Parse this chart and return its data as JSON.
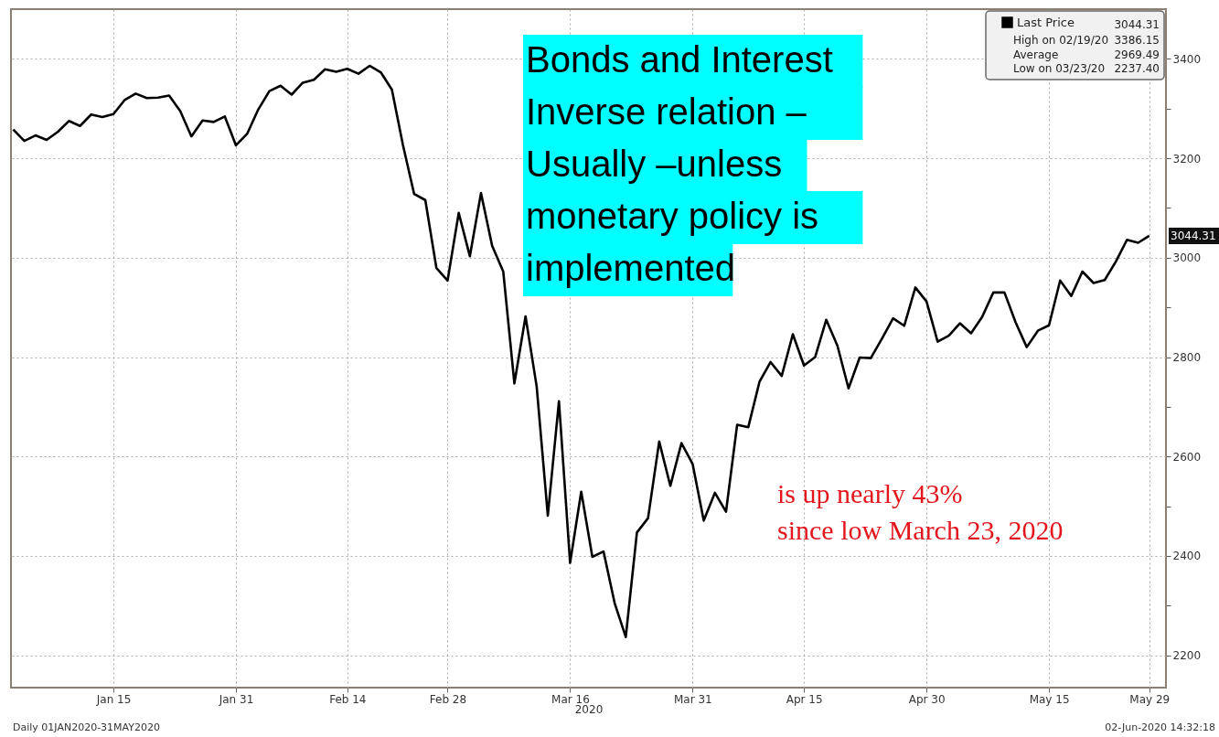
{
  "chart_data": {
    "type": "line",
    "xlabel": "2020",
    "categories": [
      null,
      null,
      null,
      null,
      null,
      null,
      null,
      null,
      null,
      "Jan 15",
      null,
      null,
      null,
      null,
      null,
      null,
      null,
      null,
      null,
      null,
      "Jan 31",
      null,
      null,
      null,
      null,
      null,
      null,
      null,
      null,
      null,
      "Feb 14",
      null,
      null,
      null,
      null,
      null,
      null,
      null,
      null,
      "Feb 28",
      null,
      null,
      null,
      null,
      null,
      null,
      null,
      null,
      null,
      null,
      "Mar 16",
      null,
      null,
      null,
      null,
      null,
      null,
      null,
      null,
      null,
      null,
      "Mar 31",
      null,
      null,
      null,
      null,
      null,
      null,
      null,
      null,
      null,
      "Apr 15",
      null,
      null,
      null,
      null,
      null,
      null,
      null,
      null,
      null,
      null,
      "Apr 30",
      null,
      null,
      null,
      null,
      null,
      null,
      null,
      null,
      null,
      null,
      "May 15",
      null,
      null,
      null,
      null,
      null,
      null,
      null,
      null,
      "May 29"
    ],
    "series": [
      {
        "name": "Last Price",
        "color": "#000000",
        "values": [
          3258,
          3235,
          3246,
          3237,
          3253,
          3275,
          3265,
          3288,
          3283,
          3289,
          3317,
          3330,
          3321,
          3322,
          3326,
          3295,
          3244,
          3276,
          3273,
          3284,
          3226,
          3249,
          3298,
          3335,
          3346,
          3328,
          3352,
          3358,
          3379,
          3374,
          3380,
          3370,
          3386,
          3373,
          3338,
          3226,
          3128,
          3116,
          2979,
          2954,
          3090,
          3003,
          3130,
          3024,
          2972,
          2747,
          2882,
          2741,
          2481,
          2711,
          2386,
          2529,
          2398,
          2409,
          2305,
          2237,
          2447,
          2476,
          2630,
          2541,
          2627,
          2585,
          2471,
          2527,
          2489,
          2664,
          2659,
          2750,
          2790,
          2762,
          2846,
          2783,
          2800,
          2875,
          2823,
          2737,
          2799,
          2798,
          2837,
          2878,
          2863,
          2940,
          2912,
          2831,
          2843,
          2868,
          2848,
          2881,
          2930,
          2930,
          2870,
          2820,
          2853,
          2864,
          2954,
          2923,
          2972,
          2949,
          2955,
          2992,
          3036,
          3030,
          3044
        ]
      }
    ],
    "ylim": [
      2135,
      3500
    ],
    "yticks": [
      2200,
      {
        "value": 2300,
        "label": null
      },
      2400,
      {
        "value": 2500,
        "label": null
      },
      2600,
      {
        "value": 2700,
        "label": null
      },
      2800,
      {
        "value": 2900,
        "label": null
      },
      3000,
      {
        "value": 3100,
        "label": null
      },
      3200,
      {
        "value": 3300,
        "label": null
      },
      3400
    ],
    "grid": true,
    "legend": "top right",
    "line_style": "solid",
    "marker": "none",
    "annotations": [
      "Bonds and Interest\nInverse relation –\nUsually –unless\nmonetary policy is\nimplemented",
      "is up nearly 43%\nsince low March 23, 2020",
      "3044.31",
      "High on 02/19/20 3386.15",
      "Average 2969.49",
      "Low on 03/23/20 2237.40",
      "3044.31",
      "Daily 01JAN2020-31MAY2020",
      "02-Jun-2020 14:32:18"
    ]
  }
}
